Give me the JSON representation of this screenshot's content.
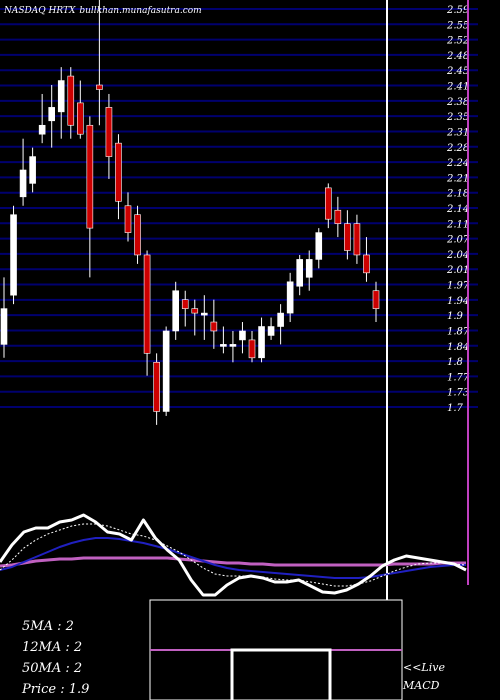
{
  "header": {
    "title": "NASDAQ HRTX",
    "site": "bullkhan.munafasutra.com"
  },
  "colors": {
    "background": "#000000",
    "grid": "#00006e",
    "up": "#ffffff",
    "down": "#cc0000",
    "price_line": "#ffffff",
    "accent_purple": "#c040c0",
    "macd_line": "#c060c0",
    "signal_line": "#2020c0"
  },
  "chart_data": [
    {
      "type": "candlestick",
      "title": "NASDAQ HRTX",
      "y_ticks": [
        "2.59",
        "2.55",
        "2.52",
        "2.48",
        "2.45",
        "2.41",
        "2.38",
        "2.35",
        "2.31",
        "2.28",
        "2.24",
        "2.21",
        "2.18",
        "2.14",
        "2.11",
        "2.07",
        "2.04",
        "2.01",
        "1.97",
        "1.94",
        "1.9",
        "1.87",
        "1.84",
        "1.8",
        "1.77",
        "1.73",
        "1.7"
      ],
      "ylim": [
        1.67,
        2.6
      ],
      "grid": true,
      "candles": [
        {
          "o": 1.84,
          "h": 1.99,
          "l": 1.81,
          "c": 1.92
        },
        {
          "o": 1.95,
          "h": 2.15,
          "l": 1.93,
          "c": 2.13
        },
        {
          "o": 2.17,
          "h": 2.3,
          "l": 2.15,
          "c": 2.23
        },
        {
          "o": 2.2,
          "h": 2.28,
          "l": 2.18,
          "c": 2.26
        },
        {
          "o": 2.31,
          "h": 2.4,
          "l": 2.29,
          "c": 2.33
        },
        {
          "o": 2.34,
          "h": 2.42,
          "l": 2.28,
          "c": 2.37
        },
        {
          "o": 2.36,
          "h": 2.46,
          "l": 2.3,
          "c": 2.43
        },
        {
          "o": 2.44,
          "h": 2.46,
          "l": 2.3,
          "c": 2.33
        },
        {
          "o": 2.38,
          "h": 2.43,
          "l": 2.3,
          "c": 2.31
        },
        {
          "o": 2.33,
          "h": 2.35,
          "l": 1.99,
          "c": 2.1
        },
        {
          "o": 2.42,
          "h": 2.65,
          "l": 2.33,
          "c": 2.41
        },
        {
          "o": 2.37,
          "h": 2.4,
          "l": 2.21,
          "c": 2.26
        },
        {
          "o": 2.29,
          "h": 2.31,
          "l": 2.12,
          "c": 2.16
        },
        {
          "o": 2.15,
          "h": 2.18,
          "l": 2.07,
          "c": 2.09
        },
        {
          "o": 2.13,
          "h": 2.15,
          "l": 2.02,
          "c": 2.04
        },
        {
          "o": 2.04,
          "h": 2.05,
          "l": 1.77,
          "c": 1.82
        },
        {
          "o": 1.8,
          "h": 1.82,
          "l": 1.66,
          "c": 1.69
        },
        {
          "o": 1.69,
          "h": 1.88,
          "l": 1.68,
          "c": 1.87
        },
        {
          "o": 1.87,
          "h": 1.98,
          "l": 1.85,
          "c": 1.96
        },
        {
          "o": 1.94,
          "h": 1.96,
          "l": 1.88,
          "c": 1.92
        },
        {
          "o": 1.92,
          "h": 1.94,
          "l": 1.86,
          "c": 1.91
        },
        {
          "o": 1.91,
          "h": 1.95,
          "l": 1.85,
          "c": 1.91
        },
        {
          "o": 1.89,
          "h": 1.94,
          "l": 1.83,
          "c": 1.87
        },
        {
          "o": 1.84,
          "h": 1.88,
          "l": 1.82,
          "c": 1.84
        },
        {
          "o": 1.84,
          "h": 1.87,
          "l": 1.8,
          "c": 1.84
        },
        {
          "o": 1.85,
          "h": 1.89,
          "l": 1.82,
          "c": 1.87
        },
        {
          "o": 1.85,
          "h": 1.87,
          "l": 1.8,
          "c": 1.81
        },
        {
          "o": 1.81,
          "h": 1.9,
          "l": 1.8,
          "c": 1.88
        },
        {
          "o": 1.86,
          "h": 1.9,
          "l": 1.85,
          "c": 1.88
        },
        {
          "o": 1.88,
          "h": 1.93,
          "l": 1.84,
          "c": 1.91
        },
        {
          "o": 1.91,
          "h": 2.0,
          "l": 1.89,
          "c": 1.98
        },
        {
          "o": 1.97,
          "h": 2.04,
          "l": 1.95,
          "c": 2.03
        },
        {
          "o": 1.99,
          "h": 2.05,
          "l": 1.96,
          "c": 2.03
        },
        {
          "o": 2.03,
          "h": 2.1,
          "l": 2.01,
          "c": 2.09
        },
        {
          "o": 2.19,
          "h": 2.2,
          "l": 2.1,
          "c": 2.12
        },
        {
          "o": 2.14,
          "h": 2.17,
          "l": 2.08,
          "c": 2.11
        },
        {
          "o": 2.11,
          "h": 2.14,
          "l": 2.03,
          "c": 2.05
        },
        {
          "o": 2.11,
          "h": 2.13,
          "l": 2.02,
          "c": 2.04
        },
        {
          "o": 2.04,
          "h": 2.08,
          "l": 1.98,
          "c": 2.0
        },
        {
          "o": 1.96,
          "h": 1.98,
          "l": 1.89,
          "c": 1.92
        }
      ]
    },
    {
      "type": "line",
      "caption": "MACD",
      "series": [
        {
          "key": "price",
          "values": [
            0.38,
            0.55,
            0.68,
            0.72,
            0.72,
            0.78,
            0.8,
            0.85,
            0.78,
            0.68,
            0.66,
            0.6,
            0.8,
            0.62,
            0.5,
            0.4,
            0.2,
            0.05,
            0.05,
            0.15,
            0.22,
            0.24,
            0.22,
            0.18,
            0.18,
            0.2,
            0.14,
            0.08,
            0.07,
            0.1,
            0.16,
            0.24,
            0.34,
            0.4,
            0.44,
            0.42,
            0.4,
            0.38,
            0.36,
            0.3
          ]
        },
        {
          "key": "smooth",
          "values": [
            0.3,
            0.4,
            0.52,
            0.6,
            0.66,
            0.7,
            0.74,
            0.76,
            0.76,
            0.74,
            0.7,
            0.66,
            0.64,
            0.6,
            0.54,
            0.48,
            0.4,
            0.32,
            0.26,
            0.24,
            0.24,
            0.24,
            0.23,
            0.21,
            0.2,
            0.2,
            0.18,
            0.16,
            0.14,
            0.14,
            0.16,
            0.19,
            0.24,
            0.29,
            0.33,
            0.36,
            0.37,
            0.37,
            0.36,
            0.35
          ]
        },
        {
          "key": "signal",
          "values": [
            0.3,
            0.33,
            0.38,
            0.43,
            0.48,
            0.53,
            0.57,
            0.6,
            0.62,
            0.62,
            0.61,
            0.59,
            0.57,
            0.54,
            0.51,
            0.47,
            0.43,
            0.39,
            0.35,
            0.32,
            0.3,
            0.29,
            0.28,
            0.27,
            0.26,
            0.25,
            0.24,
            0.23,
            0.22,
            0.22,
            0.22,
            0.23,
            0.25,
            0.27,
            0.29,
            0.31,
            0.33,
            0.34,
            0.35,
            0.35
          ]
        },
        {
          "key": "macd",
          "values": [
            0.34,
            0.35,
            0.37,
            0.39,
            0.4,
            0.41,
            0.41,
            0.42,
            0.42,
            0.42,
            0.42,
            0.42,
            0.42,
            0.42,
            0.42,
            0.41,
            0.4,
            0.39,
            0.38,
            0.37,
            0.37,
            0.36,
            0.36,
            0.35,
            0.35,
            0.35,
            0.35,
            0.35,
            0.35,
            0.35,
            0.35,
            0.35,
            0.35,
            0.36,
            0.36,
            0.36,
            0.36,
            0.37,
            0.37,
            0.37
          ]
        }
      ]
    }
  ],
  "legend": {
    "ma5": "5MA : 2",
    "ma12": "12MA : 2",
    "ma50": "50MA : 2",
    "price": "Price   : 1.9"
  },
  "live": {
    "label": "<<Live",
    "sublabel": "MACD"
  }
}
